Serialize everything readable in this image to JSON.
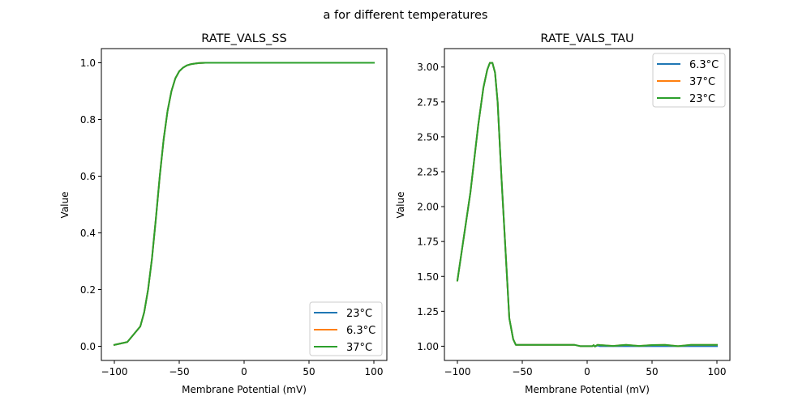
{
  "chart_data": {
    "suptitle": "a for different temperatures",
    "subplots": [
      {
        "type": "line",
        "title": "RATE_VALS_SS",
        "xlabel": "Membrane Potential (mV)",
        "ylabel": "Value",
        "xlim": [
          -110,
          110
        ],
        "ylim": [
          -0.05,
          1.05
        ],
        "xticks": [
          -100,
          -50,
          0,
          50,
          100
        ],
        "xtick_labels": [
          "−100",
          "−50",
          "0",
          "50",
          "100"
        ],
        "yticks": [
          0.0,
          0.2,
          0.4,
          0.6,
          0.8,
          1.0
        ],
        "ytick_labels": [
          "0.0",
          "0.2",
          "0.4",
          "0.6",
          "0.8",
          "1.0"
        ],
        "legend_position": "lower-right",
        "grid": false,
        "series": [
          {
            "name": "23°C",
            "color": "#1f77b4",
            "x": [
              -100,
              -90,
              -80,
              -77,
              -74,
              -71,
              -68,
              -65,
              -62,
              -59,
              -56,
              -53,
              -50,
              -47,
              -44,
              -41,
              -38,
              -35,
              -30,
              -25,
              -20,
              -10,
              0,
              25,
              50,
              75,
              100
            ],
            "y": [
              0.005,
              0.015,
              0.07,
              0.12,
              0.2,
              0.31,
              0.45,
              0.6,
              0.73,
              0.83,
              0.9,
              0.945,
              0.97,
              0.983,
              0.991,
              0.995,
              0.997,
              0.999,
              1.0,
              1.0,
              1.0,
              1.0,
              1.0,
              1.0,
              1.0,
              1.0,
              1.0
            ]
          },
          {
            "name": "6.3°C",
            "color": "#ff7f0e",
            "x": [
              -100,
              -90,
              -80,
              -77,
              -74,
              -71,
              -68,
              -65,
              -62,
              -59,
              -56,
              -53,
              -50,
              -47,
              -44,
              -41,
              -38,
              -35,
              -30,
              -25,
              -20,
              -10,
              0,
              25,
              50,
              75,
              100
            ],
            "y": [
              0.005,
              0.015,
              0.07,
              0.12,
              0.2,
              0.31,
              0.45,
              0.6,
              0.73,
              0.83,
              0.9,
              0.945,
              0.97,
              0.983,
              0.991,
              0.995,
              0.997,
              0.999,
              1.0,
              1.0,
              1.0,
              1.0,
              1.0,
              1.0,
              1.0,
              1.0,
              1.0
            ]
          },
          {
            "name": "37°C",
            "color": "#2ca02c",
            "x": [
              -100,
              -90,
              -80,
              -77,
              -74,
              -71,
              -68,
              -65,
              -62,
              -59,
              -56,
              -53,
              -50,
              -47,
              -44,
              -41,
              -38,
              -35,
              -30,
              -25,
              -20,
              -10,
              0,
              25,
              50,
              75,
              100
            ],
            "y": [
              0.005,
              0.015,
              0.07,
              0.12,
              0.2,
              0.31,
              0.45,
              0.6,
              0.73,
              0.83,
              0.9,
              0.945,
              0.97,
              0.983,
              0.991,
              0.995,
              0.997,
              0.999,
              1.0,
              1.0,
              1.0,
              1.0,
              1.0,
              1.0,
              1.0,
              1.0,
              1.0
            ]
          }
        ]
      },
      {
        "type": "line",
        "title": "RATE_VALS_TAU",
        "xlabel": "Membrane Potential (mV)",
        "ylabel": "Value",
        "xlim": [
          -110,
          110
        ],
        "ylim": [
          0.898,
          3.132
        ],
        "xticks": [
          -100,
          -50,
          0,
          50,
          100
        ],
        "xtick_labels": [
          "−100",
          "−50",
          "0",
          "50",
          "100"
        ],
        "yticks": [
          1.0,
          1.25,
          1.5,
          1.75,
          2.0,
          2.25,
          2.5,
          2.75,
          3.0
        ],
        "ytick_labels": [
          "1.00",
          "1.25",
          "1.50",
          "1.75",
          "2.00",
          "2.25",
          "2.50",
          "2.75",
          "3.00"
        ],
        "legend_position": "upper-right",
        "grid": false,
        "series": [
          {
            "name": "6.3°C",
            "color": "#1f77b4",
            "x": [
              -100,
              -90,
              -84,
              -80,
              -77,
              -75,
              -73,
              -71,
              -69,
              -66,
              -63,
              -60,
              -57,
              -55,
              -10,
              -5,
              0,
              4,
              5,
              6,
              8,
              10,
              20,
              30,
              40,
              50,
              60,
              70,
              80,
              90,
              100
            ],
            "y": [
              1.47,
              2.1,
              2.58,
              2.85,
              2.98,
              3.03,
              3.03,
              2.96,
              2.75,
              2.2,
              1.7,
              1.2,
              1.05,
              1.01,
              1.01,
              1.0,
              1.0,
              1.0,
              1.005,
              0.998,
              1.005,
              1.0,
              1.0,
              1.0,
              1.0,
              1.0,
              1.0,
              1.0,
              1.0,
              1.0,
              1.0
            ]
          },
          {
            "name": "37°C",
            "color": "#ff7f0e",
            "x": [
              -100,
              -90,
              -84,
              -80,
              -77,
              -75,
              -73,
              -71,
              -69,
              -66,
              -63,
              -60,
              -57,
              -55,
              -10,
              -5,
              0,
              4,
              5,
              6,
              8,
              10,
              20,
              30,
              40,
              50,
              60,
              70,
              80,
              90,
              100
            ],
            "y": [
              1.47,
              2.1,
              2.58,
              2.85,
              2.98,
              3.03,
              3.03,
              2.96,
              2.75,
              2.2,
              1.7,
              1.2,
              1.05,
              1.01,
              1.01,
              1.0,
              1.0,
              1.0,
              1.008,
              0.998,
              1.01,
              1.008,
              1.002,
              1.01,
              1.002,
              1.008,
              1.01,
              1.0,
              1.01,
              1.01,
              1.01
            ]
          },
          {
            "name": "23°C",
            "color": "#2ca02c",
            "x": [
              -100,
              -90,
              -84,
              -80,
              -77,
              -75,
              -73,
              -71,
              -69,
              -66,
              -63,
              -60,
              -57,
              -55,
              -10,
              -5,
              0,
              4,
              5,
              6,
              8,
              10,
              20,
              30,
              40,
              50,
              60,
              70,
              80,
              90,
              100
            ],
            "y": [
              1.47,
              2.1,
              2.58,
              2.85,
              2.98,
              3.03,
              3.03,
              2.96,
              2.75,
              2.2,
              1.7,
              1.2,
              1.05,
              1.01,
              1.01,
              1.0,
              1.0,
              1.0,
              1.008,
              0.998,
              1.01,
              1.008,
              1.002,
              1.01,
              1.002,
              1.008,
              1.01,
              1.0,
              1.01,
              1.01,
              1.01
            ]
          }
        ]
      }
    ]
  }
}
